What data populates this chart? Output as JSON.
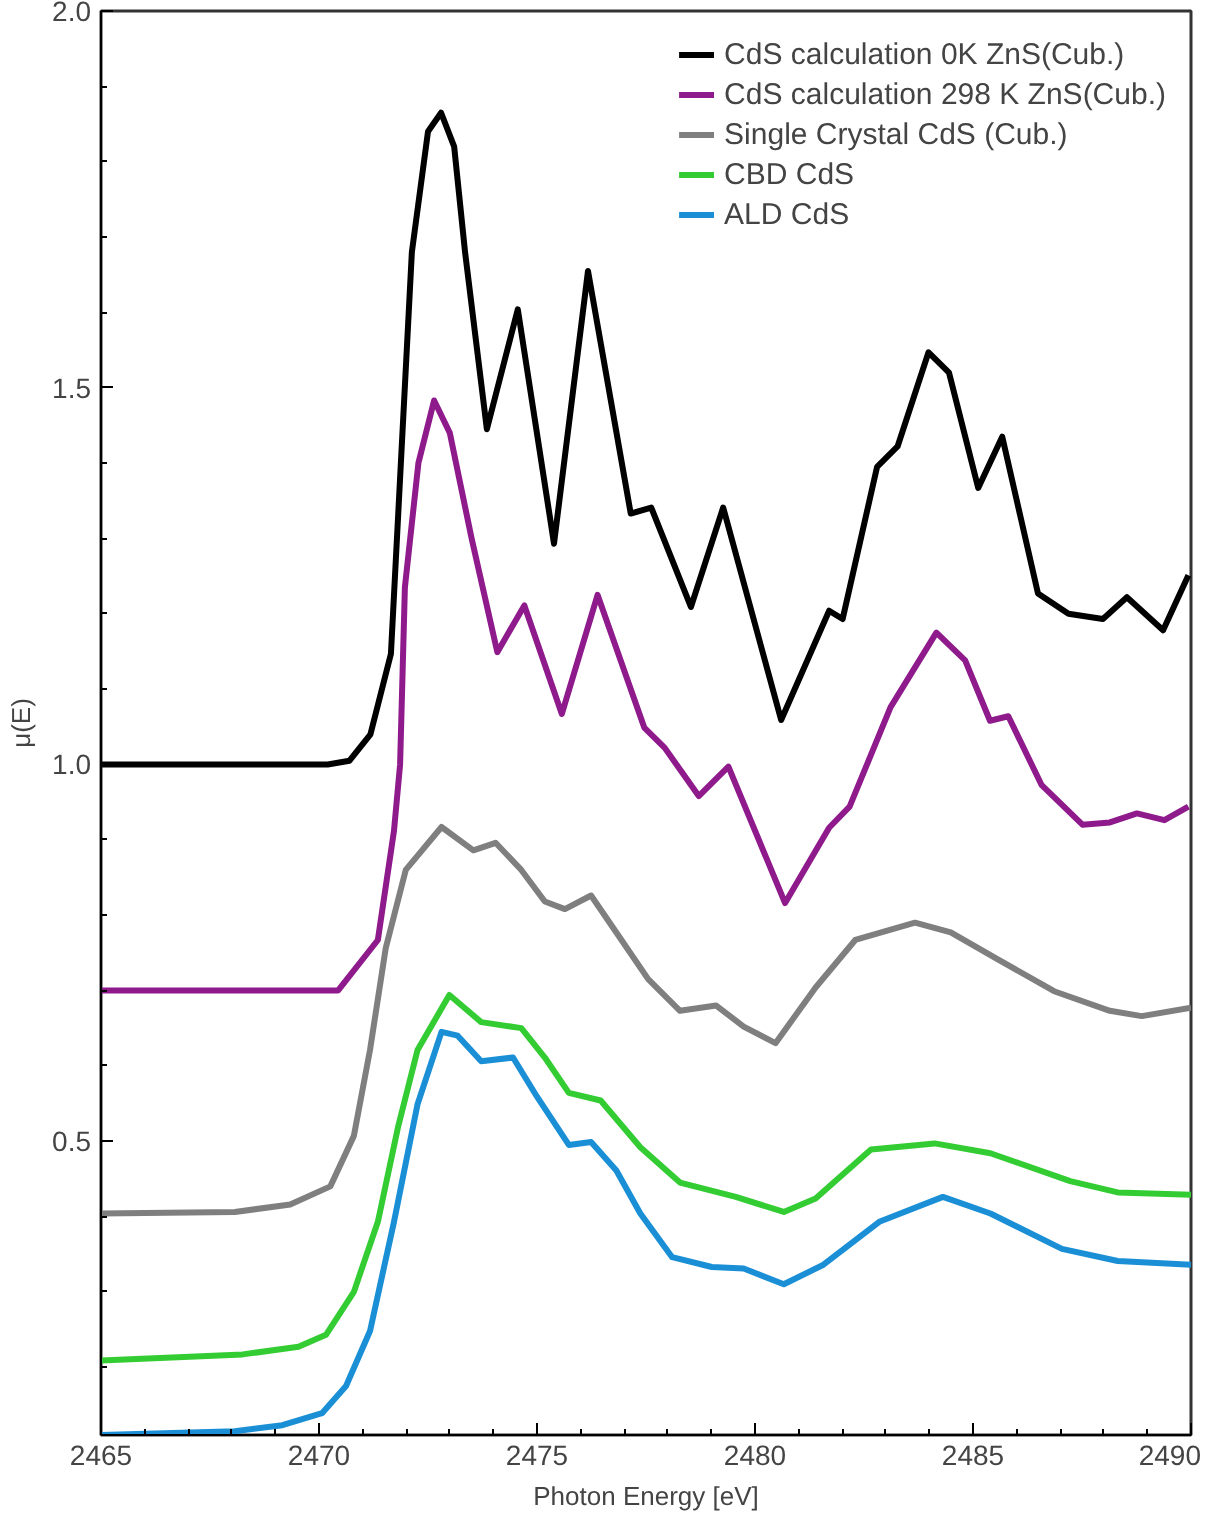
{
  "chart_data": {
    "type": "line",
    "xlabel": "Photon Energy [eV]",
    "ylabel": "μ(E)",
    "legend": "top right",
    "grid": false,
    "marker": "none",
    "line_style": "solid",
    "xlim": [
      2465,
      2490
    ],
    "ylim": [
      0.11,
      2.0
    ],
    "xticks": [
      2465,
      2470,
      2475,
      2480,
      2485,
      2490,
      {
        "value": 2466,
        "label": null
      },
      {
        "value": 2467,
        "label": null
      },
      {
        "value": 2468,
        "label": null
      },
      {
        "value": 2469,
        "label": null
      },
      {
        "value": 2471,
        "label": null
      },
      {
        "value": 2472,
        "label": null
      },
      {
        "value": 2473,
        "label": null
      },
      {
        "value": 2474,
        "label": null
      },
      {
        "value": 2476,
        "label": null
      },
      {
        "value": 2477,
        "label": null
      },
      {
        "value": 2478,
        "label": null
      },
      {
        "value": 2479,
        "label": null
      },
      {
        "value": 2481,
        "label": null
      },
      {
        "value": 2482,
        "label": null
      },
      {
        "value": 2483,
        "label": null
      },
      {
        "value": 2484,
        "label": null
      },
      {
        "value": 2486,
        "label": null
      },
      {
        "value": 2487,
        "label": null
      },
      {
        "value": 2488,
        "label": null
      },
      {
        "value": 2489,
        "label": null
      }
    ],
    "yticks": [
      0.5,
      {
        "value": 1.0,
        "label": "1.0"
      },
      1.5,
      {
        "value": 2.0,
        "label": "2.0"
      },
      {
        "value": 0.2,
        "label": null
      },
      {
        "value": 0.3,
        "label": null
      },
      {
        "value": 0.4,
        "label": null
      },
      {
        "value": 0.6,
        "label": null
      },
      {
        "value": 0.7,
        "label": null
      },
      {
        "value": 0.8,
        "label": null
      },
      {
        "value": 0.9,
        "label": null
      },
      {
        "value": 1.1,
        "label": null
      },
      {
        "value": 1.2,
        "label": null
      },
      {
        "value": 1.3,
        "label": null
      },
      {
        "value": 1.4,
        "label": null
      },
      {
        "value": 1.6,
        "label": null
      },
      {
        "value": 1.7,
        "label": null
      },
      {
        "value": 1.8,
        "label": null
      },
      {
        "value": 1.9,
        "label": null
      }
    ],
    "series": [
      {
        "name": "CdS calculation 0K ZnS(Cub.)",
        "color": "#000000",
        "x": [
          2465,
          2470.2,
          2470.7,
          2471.18,
          2471.65,
          2472.13,
          2472.5,
          2472.8,
          2473.1,
          2473.35,
          2473.85,
          2474.56,
          2475.39,
          2476.17,
          2477.15,
          2477.62,
          2478.53,
          2479.27,
          2480.6,
          2481.7,
          2482.01,
          2482.8,
          2483.27,
          2483.98,
          2484.45,
          2485.12,
          2485.67,
          2486.49,
          2487.19,
          2487.98,
          2488.53,
          2489.36,
          2489.94
        ],
        "values": [
          1.0,
          1.0,
          1.005,
          1.04,
          1.147,
          1.68,
          1.84,
          1.865,
          1.82,
          1.68,
          1.445,
          1.604,
          1.293,
          1.655,
          1.333,
          1.341,
          1.209,
          1.341,
          1.059,
          1.204,
          1.193,
          1.395,
          1.422,
          1.547,
          1.52,
          1.367,
          1.435,
          1.227,
          1.2,
          1.193,
          1.222,
          1.178,
          1.251
        ]
      },
      {
        "name": "CdS calculation 298 K ZnS(Cub.)",
        "color": "#8e1a8c",
        "x": [
          2465,
          2470.44,
          2471.35,
          2471.72,
          2471.86,
          2471.97,
          2472.28,
          2472.64,
          2473.0,
          2473.5,
          2474.09,
          2474.71,
          2475.57,
          2476.39,
          2477.46,
          2477.93,
          2478.71,
          2479.39,
          2480.69,
          2481.7,
          2482.17,
          2483.11,
          2484.16,
          2484.82,
          2485.39,
          2485.81,
          2486.57,
          2487.51,
          2488.14,
          2488.76,
          2489.39,
          2489.94
        ],
        "values": [
          0.7,
          0.7,
          0.767,
          0.912,
          1.0,
          1.235,
          1.4,
          1.483,
          1.44,
          1.3,
          1.149,
          1.211,
          1.067,
          1.225,
          1.049,
          1.022,
          0.958,
          0.997,
          0.816,
          0.916,
          0.944,
          1.076,
          1.175,
          1.138,
          1.058,
          1.064,
          0.973,
          0.92,
          0.923,
          0.935,
          0.926,
          0.944
        ]
      },
      {
        "name": "Single Crystal CdS (Cub.)",
        "color": "#7f7f7f",
        "x": [
          2465,
          2468.07,
          2469.34,
          2470.26,
          2470.8,
          2471.17,
          2471.53,
          2471.99,
          2472.81,
          2473.54,
          2474.05,
          2474.64,
          2475.18,
          2475.64,
          2476.24,
          2476.82,
          2477.55,
          2478.28,
          2479.11,
          2479.74,
          2480.47,
          2481.39,
          2482.3,
          2483.67,
          2484.49,
          2485.58,
          2486.86,
          2488.14,
          2488.87,
          2490.0
        ],
        "values": [
          0.404,
          0.406,
          0.416,
          0.44,
          0.507,
          0.621,
          0.756,
          0.86,
          0.917,
          0.886,
          0.896,
          0.86,
          0.818,
          0.808,
          0.826,
          0.777,
          0.715,
          0.673,
          0.68,
          0.652,
          0.63,
          0.704,
          0.767,
          0.79,
          0.777,
          0.741,
          0.699,
          0.673,
          0.666,
          0.677
        ]
      },
      {
        "name": "CBD CdS",
        "color": "#33cc33",
        "x": [
          2465,
          2468.25,
          2469.53,
          2470.16,
          2470.8,
          2471.35,
          2471.81,
          2472.26,
          2472.99,
          2473.72,
          2474.64,
          2475.18,
          2475.73,
          2476.46,
          2477.37,
          2478.28,
          2479.56,
          2480.66,
          2481.39,
          2482.66,
          2484.12,
          2485.4,
          2487.23,
          2488.32,
          2490.0
        ],
        "values": [
          0.209,
          0.217,
          0.227,
          0.243,
          0.3,
          0.393,
          0.518,
          0.621,
          0.694,
          0.658,
          0.65,
          0.611,
          0.564,
          0.554,
          0.492,
          0.445,
          0.426,
          0.406,
          0.424,
          0.489,
          0.497,
          0.484,
          0.447,
          0.432,
          0.429
        ]
      },
      {
        "name": "ALD CdS",
        "color": "#1a8fd6",
        "x": [
          2465,
          2468.07,
          2469.16,
          2470.07,
          2470.62,
          2471.17,
          2471.72,
          2472.26,
          2472.81,
          2473.18,
          2473.72,
          2474.45,
          2475.0,
          2475.73,
          2476.24,
          2476.82,
          2477.37,
          2478.1,
          2479.01,
          2479.74,
          2480.66,
          2481.57,
          2482.85,
          2484.31,
          2485.4,
          2487.04,
          2488.32,
          2490.0
        ],
        "values": [
          0.11,
          0.115,
          0.123,
          0.139,
          0.175,
          0.248,
          0.393,
          0.549,
          0.645,
          0.64,
          0.606,
          0.611,
          0.559,
          0.495,
          0.499,
          0.461,
          0.404,
          0.346,
          0.333,
          0.331,
          0.31,
          0.336,
          0.393,
          0.426,
          0.404,
          0.357,
          0.341,
          0.336
        ]
      }
    ]
  }
}
